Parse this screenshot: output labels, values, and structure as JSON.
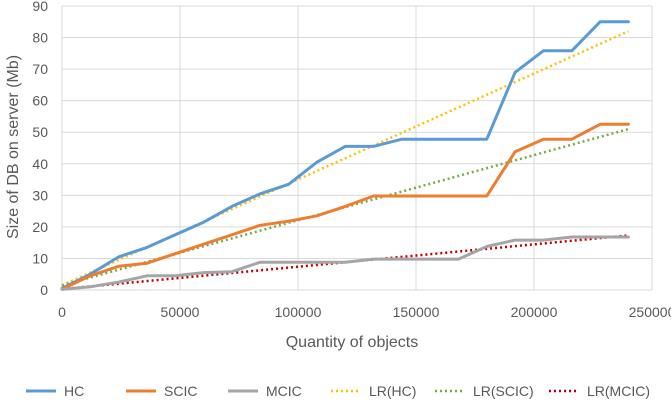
{
  "chart_data": {
    "type": "line",
    "title": "",
    "xlabel": "Quantity of objects",
    "ylabel": "Size of DB on server (Mb)",
    "xlim": [
      0,
      250000
    ],
    "ylim": [
      0,
      90
    ],
    "xticks": [
      0,
      50000,
      100000,
      150000,
      200000,
      250000
    ],
    "yticks": [
      0,
      10,
      20,
      30,
      40,
      50,
      60,
      70,
      80,
      90
    ],
    "grid": true,
    "legend_position": "bottom",
    "series": [
      {
        "name": "HC",
        "style": "solid",
        "color": "#5B9BD5",
        "x": [
          0,
          12000,
          24000,
          36000,
          48000,
          60000,
          72000,
          84000,
          96000,
          108000,
          120000,
          132000,
          144000,
          156000,
          168000,
          180000,
          192000,
          204000,
          216000,
          228000,
          240000
        ],
        "y": [
          0.5,
          5,
          10.5,
          13.5,
          17.5,
          21.5,
          26.5,
          30.5,
          33.5,
          40.5,
          45.5,
          45.5,
          47.8,
          47.8,
          47.8,
          47.8,
          69,
          75.8,
          75.8,
          85,
          85
        ]
      },
      {
        "name": "SCIC",
        "style": "solid",
        "color": "#ED7D31",
        "x": [
          0,
          12000,
          24000,
          36000,
          48000,
          60000,
          72000,
          84000,
          96000,
          108000,
          120000,
          132000,
          144000,
          156000,
          168000,
          180000,
          192000,
          204000,
          216000,
          228000,
          240000
        ],
        "y": [
          0.3,
          4.5,
          7.5,
          8.5,
          11.5,
          14.5,
          17.5,
          20.5,
          21.8,
          23.5,
          26.5,
          29.8,
          29.8,
          29.8,
          29.8,
          29.8,
          43.8,
          47.8,
          47.8,
          52.5,
          52.5
        ]
      },
      {
        "name": "MCIC",
        "style": "solid",
        "color": "#A5A5A5",
        "x": [
          0,
          12000,
          24000,
          36000,
          48000,
          60000,
          72000,
          84000,
          96000,
          108000,
          120000,
          132000,
          144000,
          156000,
          168000,
          180000,
          192000,
          204000,
          216000,
          228000,
          240000
        ],
        "y": [
          0.2,
          1,
          2.5,
          4.5,
          4.5,
          5.5,
          5.8,
          8.8,
          8.8,
          8.8,
          8.8,
          9.8,
          9.8,
          9.8,
          9.8,
          13.8,
          15.8,
          15.8,
          16.8,
          16.8,
          16.8
        ]
      },
      {
        "name": "LR(HC)",
        "style": "dotted",
        "color": "#FFC000",
        "x": [
          0,
          240000
        ],
        "y": [
          1.5,
          82
        ]
      },
      {
        "name": "LR(SCIC)",
        "style": "dotted",
        "color": "#70AD47",
        "x": [
          0,
          240000
        ],
        "y": [
          1.5,
          51
        ]
      },
      {
        "name": "LR(MCIC)",
        "style": "dotted",
        "color": "#C00000",
        "x": [
          0,
          240000
        ],
        "y": [
          0.3,
          17.3
        ]
      }
    ]
  }
}
